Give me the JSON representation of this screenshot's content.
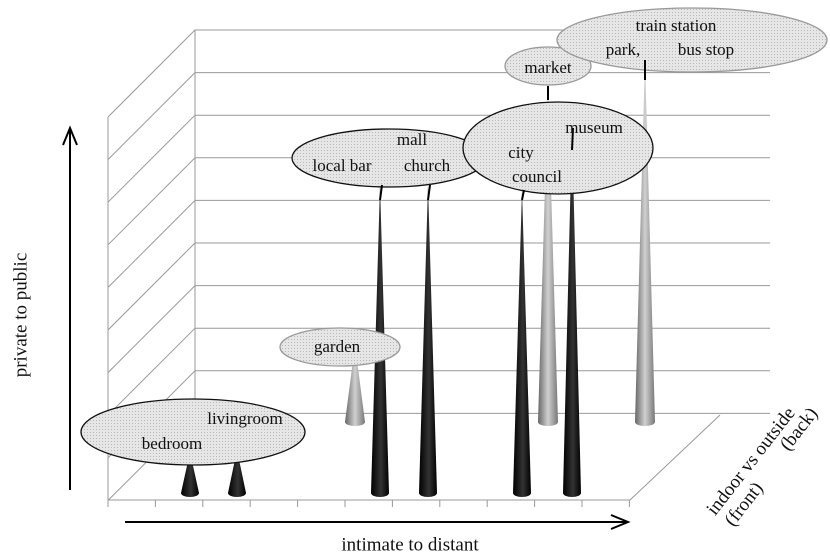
{
  "axes": {
    "y_label": "private to public",
    "x_label": "intimate to distant",
    "z_label": "indoor vs outside",
    "z_front": "(front)",
    "z_back": "(back)"
  },
  "places": [
    "bedroom",
    "livingroom",
    "garden",
    "local bar",
    "mall",
    "church",
    "city",
    "council",
    "museum",
    "market",
    "train station",
    "park,",
    "bus stop"
  ]
}
